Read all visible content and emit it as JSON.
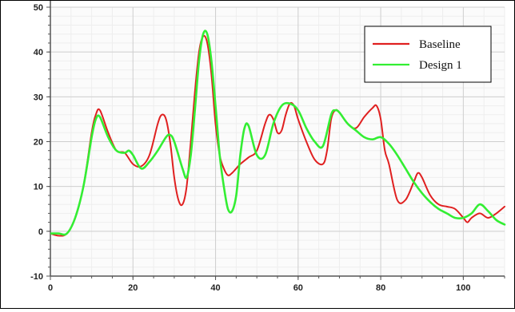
{
  "chart_data": {
    "type": "line",
    "title": "",
    "xlabel": "",
    "ylabel": "",
    "xlim": [
      0,
      110
    ],
    "ylim": [
      -10,
      50
    ],
    "xticks": [
      0,
      20,
      40,
      60,
      80,
      100
    ],
    "yticks": [
      -10,
      0,
      10,
      20,
      30,
      40,
      50
    ],
    "xtick_labels": [
      "0",
      "20",
      "40",
      "60",
      "80",
      "100"
    ],
    "ytick_labels": [
      "-10",
      "0",
      "10",
      "20",
      "30",
      "40",
      "50"
    ],
    "grid": true,
    "legend_position": "top-right",
    "series": [
      {
        "name": "Baseline",
        "color": "#e02020",
        "x": [
          0,
          2,
          4,
          6,
          8,
          10,
          11,
          12,
          14,
          16,
          18,
          20,
          22,
          24,
          26,
          27,
          28,
          29,
          30,
          31,
          32,
          33,
          34,
          35,
          36,
          37,
          38,
          39,
          40,
          41,
          42,
          43,
          44,
          45,
          46,
          48,
          50,
          52,
          53,
          54,
          55,
          56,
          57,
          58,
          59,
          60,
          62,
          64,
          66,
          67,
          68,
          69,
          70,
          72,
          74,
          76,
          78,
          79,
          80,
          81,
          82,
          84,
          86,
          88,
          89,
          90,
          92,
          94,
          96,
          98,
          100,
          101,
          102,
          104,
          106,
          108,
          110
        ],
        "y": [
          -0.5,
          -1,
          -0.5,
          3,
          10,
          22,
          26,
          27,
          22,
          18,
          17.5,
          15,
          14.5,
          17,
          24,
          26,
          25,
          20,
          12,
          7,
          6,
          10,
          20,
          31,
          40,
          43.5,
          42,
          35,
          24,
          17,
          14,
          12.5,
          13,
          14,
          15,
          16.5,
          18,
          24,
          26,
          25,
          22,
          22.5,
          26,
          28.5,
          28,
          25,
          20,
          16,
          15,
          18,
          25,
          27,
          26.5,
          24,
          23,
          25.5,
          27.5,
          28,
          25,
          18,
          15,
          7,
          7,
          11,
          13,
          12,
          8,
          6,
          5.5,
          5,
          3,
          2,
          3,
          4,
          3,
          4,
          5.5
        ]
      },
      {
        "name": "Design 1",
        "color": "#33ee33",
        "x": [
          0,
          2,
          4,
          6,
          8,
          10,
          11,
          12,
          14,
          16,
          18,
          19,
          20,
          22,
          24,
          26,
          28,
          29,
          30,
          32,
          33,
          34,
          35,
          36,
          37,
          38,
          39,
          40,
          41,
          42,
          43,
          44,
          45,
          46,
          47,
          48,
          50,
          52,
          54,
          56,
          58,
          60,
          62,
          64,
          66,
          68,
          69,
          70,
          72,
          74,
          76,
          78,
          80,
          82,
          84,
          86,
          88,
          90,
          92,
          94,
          96,
          98,
          100,
          102,
          104,
          106,
          108,
          110
        ],
        "y": [
          -0.5,
          -0.5,
          -0.5,
          3,
          10,
          21,
          25,
          25.5,
          21,
          18,
          17.5,
          18,
          17,
          14,
          15.5,
          18,
          21,
          21.5,
          20,
          14,
          12,
          17,
          27,
          38,
          44,
          44,
          38,
          28,
          17,
          10,
          5,
          4.5,
          8,
          17,
          23,
          23.5,
          17,
          17,
          24,
          28,
          28.5,
          27,
          23,
          20,
          19,
          26,
          27,
          26.5,
          24,
          22.5,
          21,
          20.5,
          21,
          19.5,
          17,
          14,
          11,
          8.5,
          6.5,
          5,
          4,
          3,
          3,
          4,
          6,
          4.5,
          2.5,
          1.5
        ]
      }
    ]
  }
}
